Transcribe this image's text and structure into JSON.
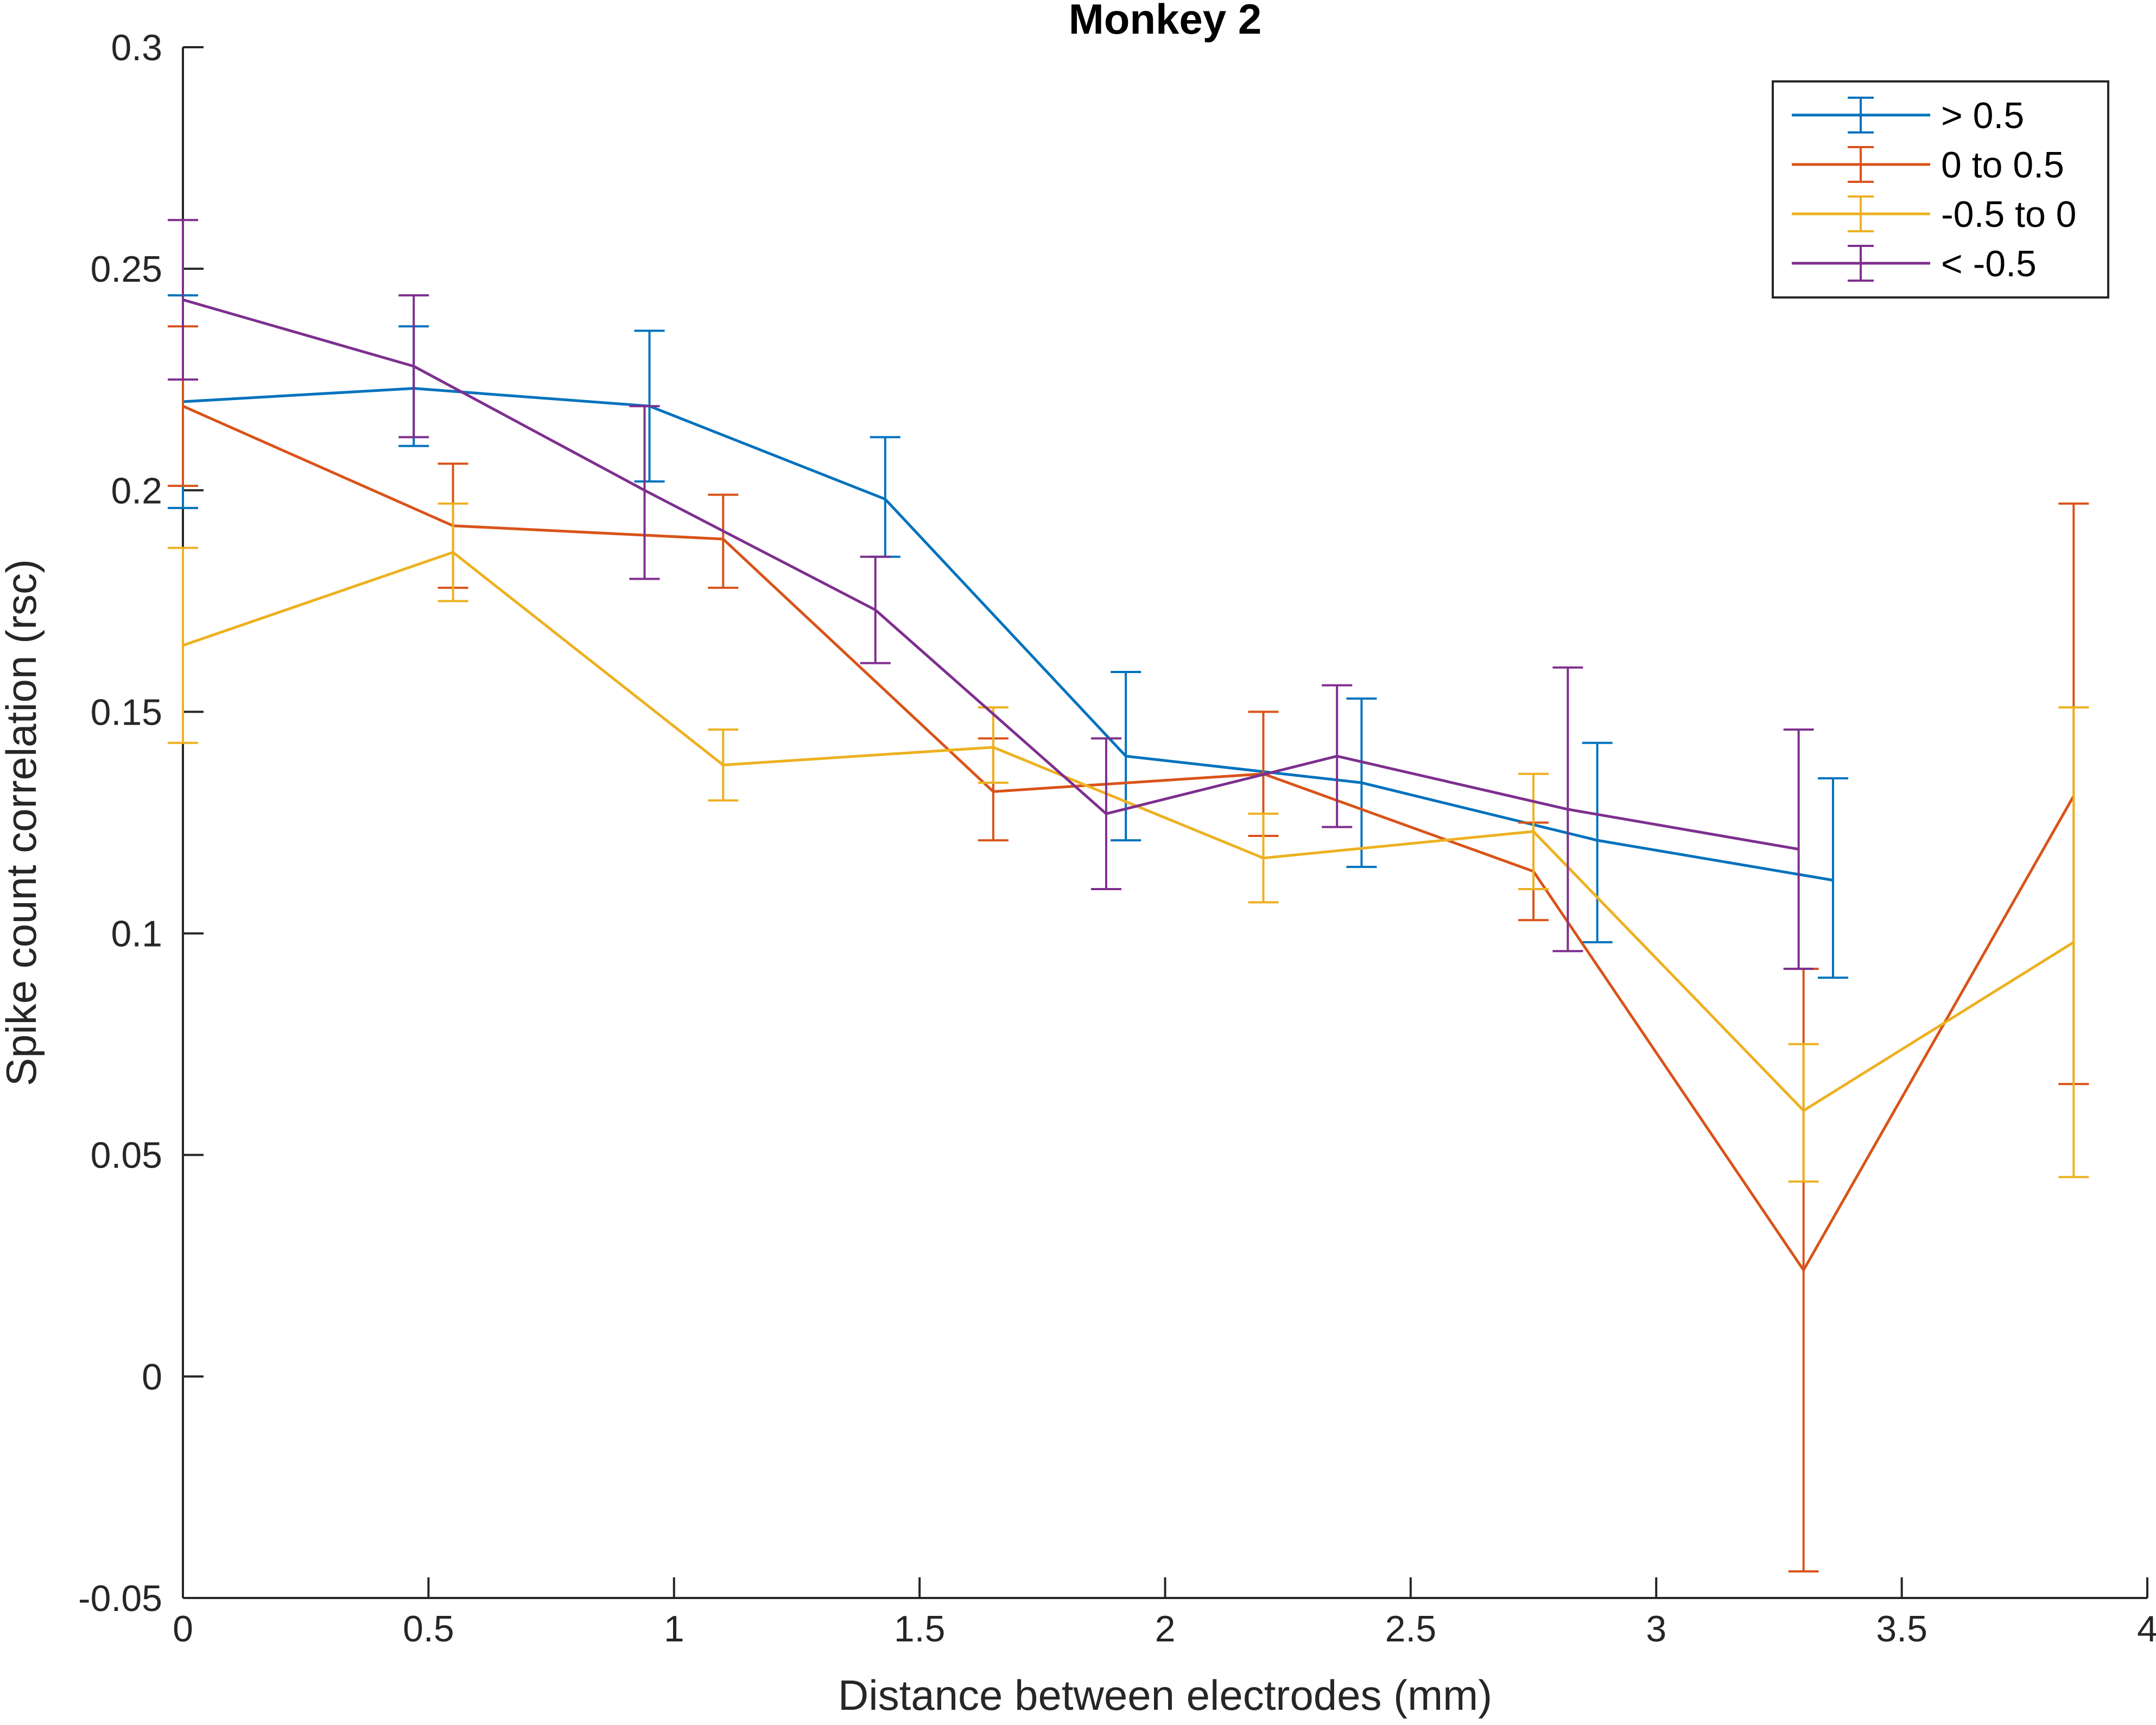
{
  "chart_data": {
    "type": "line",
    "title": "Monkey 2",
    "xlabel": "Distance between electrodes (mm)",
    "ylabel": "Spike count correlation (rsc)",
    "xlim": [
      0,
      4
    ],
    "ylim": [
      -0.05,
      0.3
    ],
    "xticks": [
      0,
      0.5,
      1,
      1.5,
      2,
      2.5,
      3,
      3.5,
      4
    ],
    "xtick_labels": [
      "0",
      "0.5",
      "1",
      "1.5",
      "2",
      "2.5",
      "3",
      "3.5",
      "4"
    ],
    "yticks": [
      -0.05,
      0,
      0.05,
      0.1,
      0.15,
      0.2,
      0.25,
      0.3
    ],
    "ytick_labels": [
      "-0.05",
      "0",
      "0.05",
      "0.1",
      "0.15",
      "0.2",
      "0.25",
      "0.3"
    ],
    "grid": false,
    "legend_position": "top-right",
    "error_bars": true,
    "series": [
      {
        "name": "> 0.5",
        "color": "#0072BD",
        "x": [
          0,
          0.47,
          0.95,
          1.43,
          1.92,
          2.4,
          2.88,
          3.36
        ],
        "y": [
          0.22,
          0.223,
          0.219,
          0.198,
          0.14,
          0.134,
          0.121,
          0.112
        ],
        "err_low": [
          0.196,
          0.21,
          0.202,
          0.185,
          0.121,
          0.115,
          0.098,
          0.09
        ],
        "err_high": [
          0.244,
          0.237,
          0.236,
          0.212,
          0.159,
          0.153,
          0.143,
          0.135
        ]
      },
      {
        "name": "0 to 0.5",
        "color": "#D95319",
        "x": [
          0,
          0.55,
          1.1,
          1.65,
          2.2,
          2.75,
          3.3,
          3.85
        ],
        "y": [
          0.219,
          0.192,
          0.189,
          0.132,
          0.136,
          0.114,
          0.024,
          0.131
        ],
        "err_low": [
          0.201,
          0.178,
          0.178,
          0.121,
          0.122,
          0.103,
          -0.044,
          0.066
        ],
        "err_high": [
          0.237,
          0.206,
          0.199,
          0.144,
          0.15,
          0.125,
          0.092,
          0.197
        ]
      },
      {
        "name": "-0.5 to 0",
        "color": "#EDB120",
        "x": [
          0,
          0.55,
          1.1,
          1.65,
          2.2,
          2.75,
          3.3,
          3.85
        ],
        "y": [
          0.165,
          0.186,
          0.138,
          0.142,
          0.117,
          0.123,
          0.06,
          0.098
        ],
        "err_low": [
          0.143,
          0.175,
          0.13,
          0.134,
          0.107,
          0.11,
          0.044,
          0.045
        ],
        "err_high": [
          0.187,
          0.197,
          0.146,
          0.151,
          0.127,
          0.136,
          0.075,
          0.151
        ]
      },
      {
        "name": "< -0.5",
        "color": "#7E2F8E",
        "x": [
          0,
          0.47,
          0.94,
          1.41,
          1.88,
          2.35,
          2.82,
          3.29
        ],
        "y": [
          0.243,
          0.228,
          0.2,
          0.173,
          0.127,
          0.14,
          0.128,
          0.119
        ],
        "err_low": [
          0.225,
          0.212,
          0.18,
          0.161,
          0.11,
          0.124,
          0.096,
          0.092
        ],
        "err_high": [
          0.261,
          0.244,
          0.219,
          0.185,
          0.144,
          0.156,
          0.16,
          0.146
        ]
      }
    ]
  }
}
